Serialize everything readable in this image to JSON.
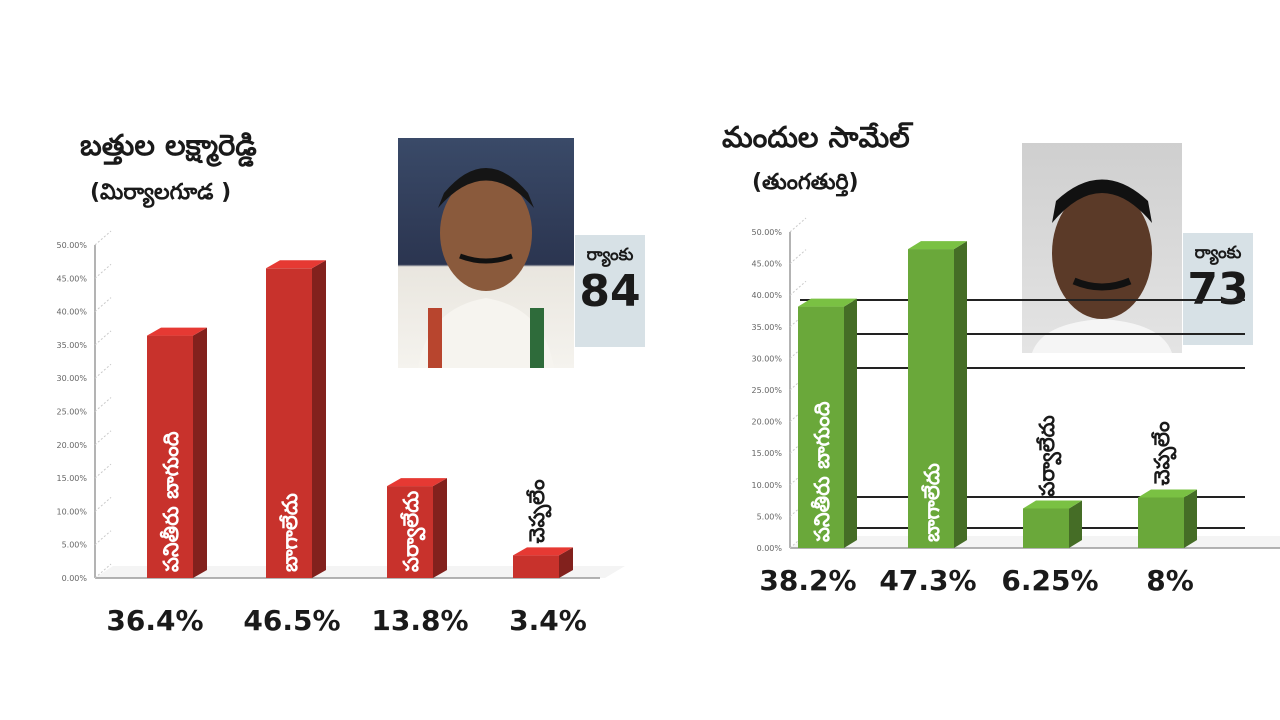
{
  "chart_data": [
    {
      "type": "bar",
      "title": "బత్తుల లక్ష్మారెడ్డి",
      "subtitle": "(మిర్యాలగూడ )",
      "rank_label": "ర్యాంకు",
      "rank": "84",
      "bar_color": "#c8322c",
      "categories": [
        "పనితీరు బాగుంది",
        "బాగాలేదు",
        "పర్వాలేదు",
        "చెప్పలేం"
      ],
      "values": [
        36.4,
        46.5,
        13.8,
        3.4
      ],
      "value_labels": [
        "36.4%",
        "46.5%",
        "13.8%",
        "3.4%"
      ],
      "ylim": [
        0,
        50
      ]
    },
    {
      "type": "bar",
      "title": "మందుల సామేల్",
      "subtitle": "(తుంగతుర్తి)",
      "rank_label": "ర్యాంకు",
      "rank": "73",
      "bar_color": "#6aa83a",
      "categories": [
        "పనితీరు బాగుంది",
        "బాగాలేదు",
        "పర్వాలేదు",
        "చెప్పలేం"
      ],
      "values": [
        38.2,
        47.3,
        6.25,
        8
      ],
      "value_labels": [
        "38.2%",
        "47.3%",
        "6.25%",
        "8%"
      ],
      "ylim": [
        0,
        50
      ]
    }
  ]
}
